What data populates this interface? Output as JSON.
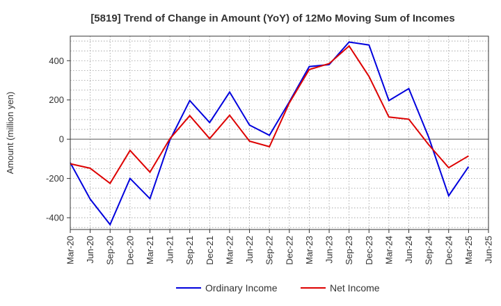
{
  "chart_data": {
    "type": "line",
    "title": "[5819]  Trend of Change in Amount (YoY) of 12Mo Moving Sum of Incomes",
    "ylabel": "Amount (million yen)",
    "xlabel": "",
    "ylim": [
      -460,
      525
    ],
    "yticks": [
      -400,
      -200,
      0,
      200,
      400
    ],
    "ytick_labels": [
      "-400",
      "-200",
      "0",
      "200",
      "400"
    ],
    "grid": true,
    "legend_position": "bottom-center",
    "categories": [
      "Mar-20",
      "Jun-20",
      "Sep-20",
      "Dec-20",
      "Mar-21",
      "Jun-21",
      "Sep-21",
      "Dec-21",
      "Mar-22",
      "Jun-22",
      "Sep-22",
      "Dec-22",
      "Mar-23",
      "Jun-23",
      "Sep-23",
      "Dec-23",
      "Mar-24",
      "Jun-24",
      "Sep-24",
      "Dec-24",
      "Mar-25",
      "Jun-25"
    ],
    "series": [
      {
        "name": "Ordinary Income",
        "color": "#0000dd",
        "values": [
          -120,
          -305,
          -435,
          -200,
          -303,
          -5,
          197,
          85,
          240,
          72,
          20,
          190,
          370,
          380,
          495,
          480,
          197,
          258,
          10,
          -288,
          -140,
          null
        ]
      },
      {
        "name": "Net Income",
        "color": "#dd0000",
        "values": [
          -125,
          -148,
          -225,
          -57,
          -168,
          2,
          120,
          3,
          122,
          -10,
          -38,
          185,
          355,
          385,
          475,
          320,
          113,
          102,
          -28,
          -145,
          -85,
          null
        ]
      }
    ]
  }
}
